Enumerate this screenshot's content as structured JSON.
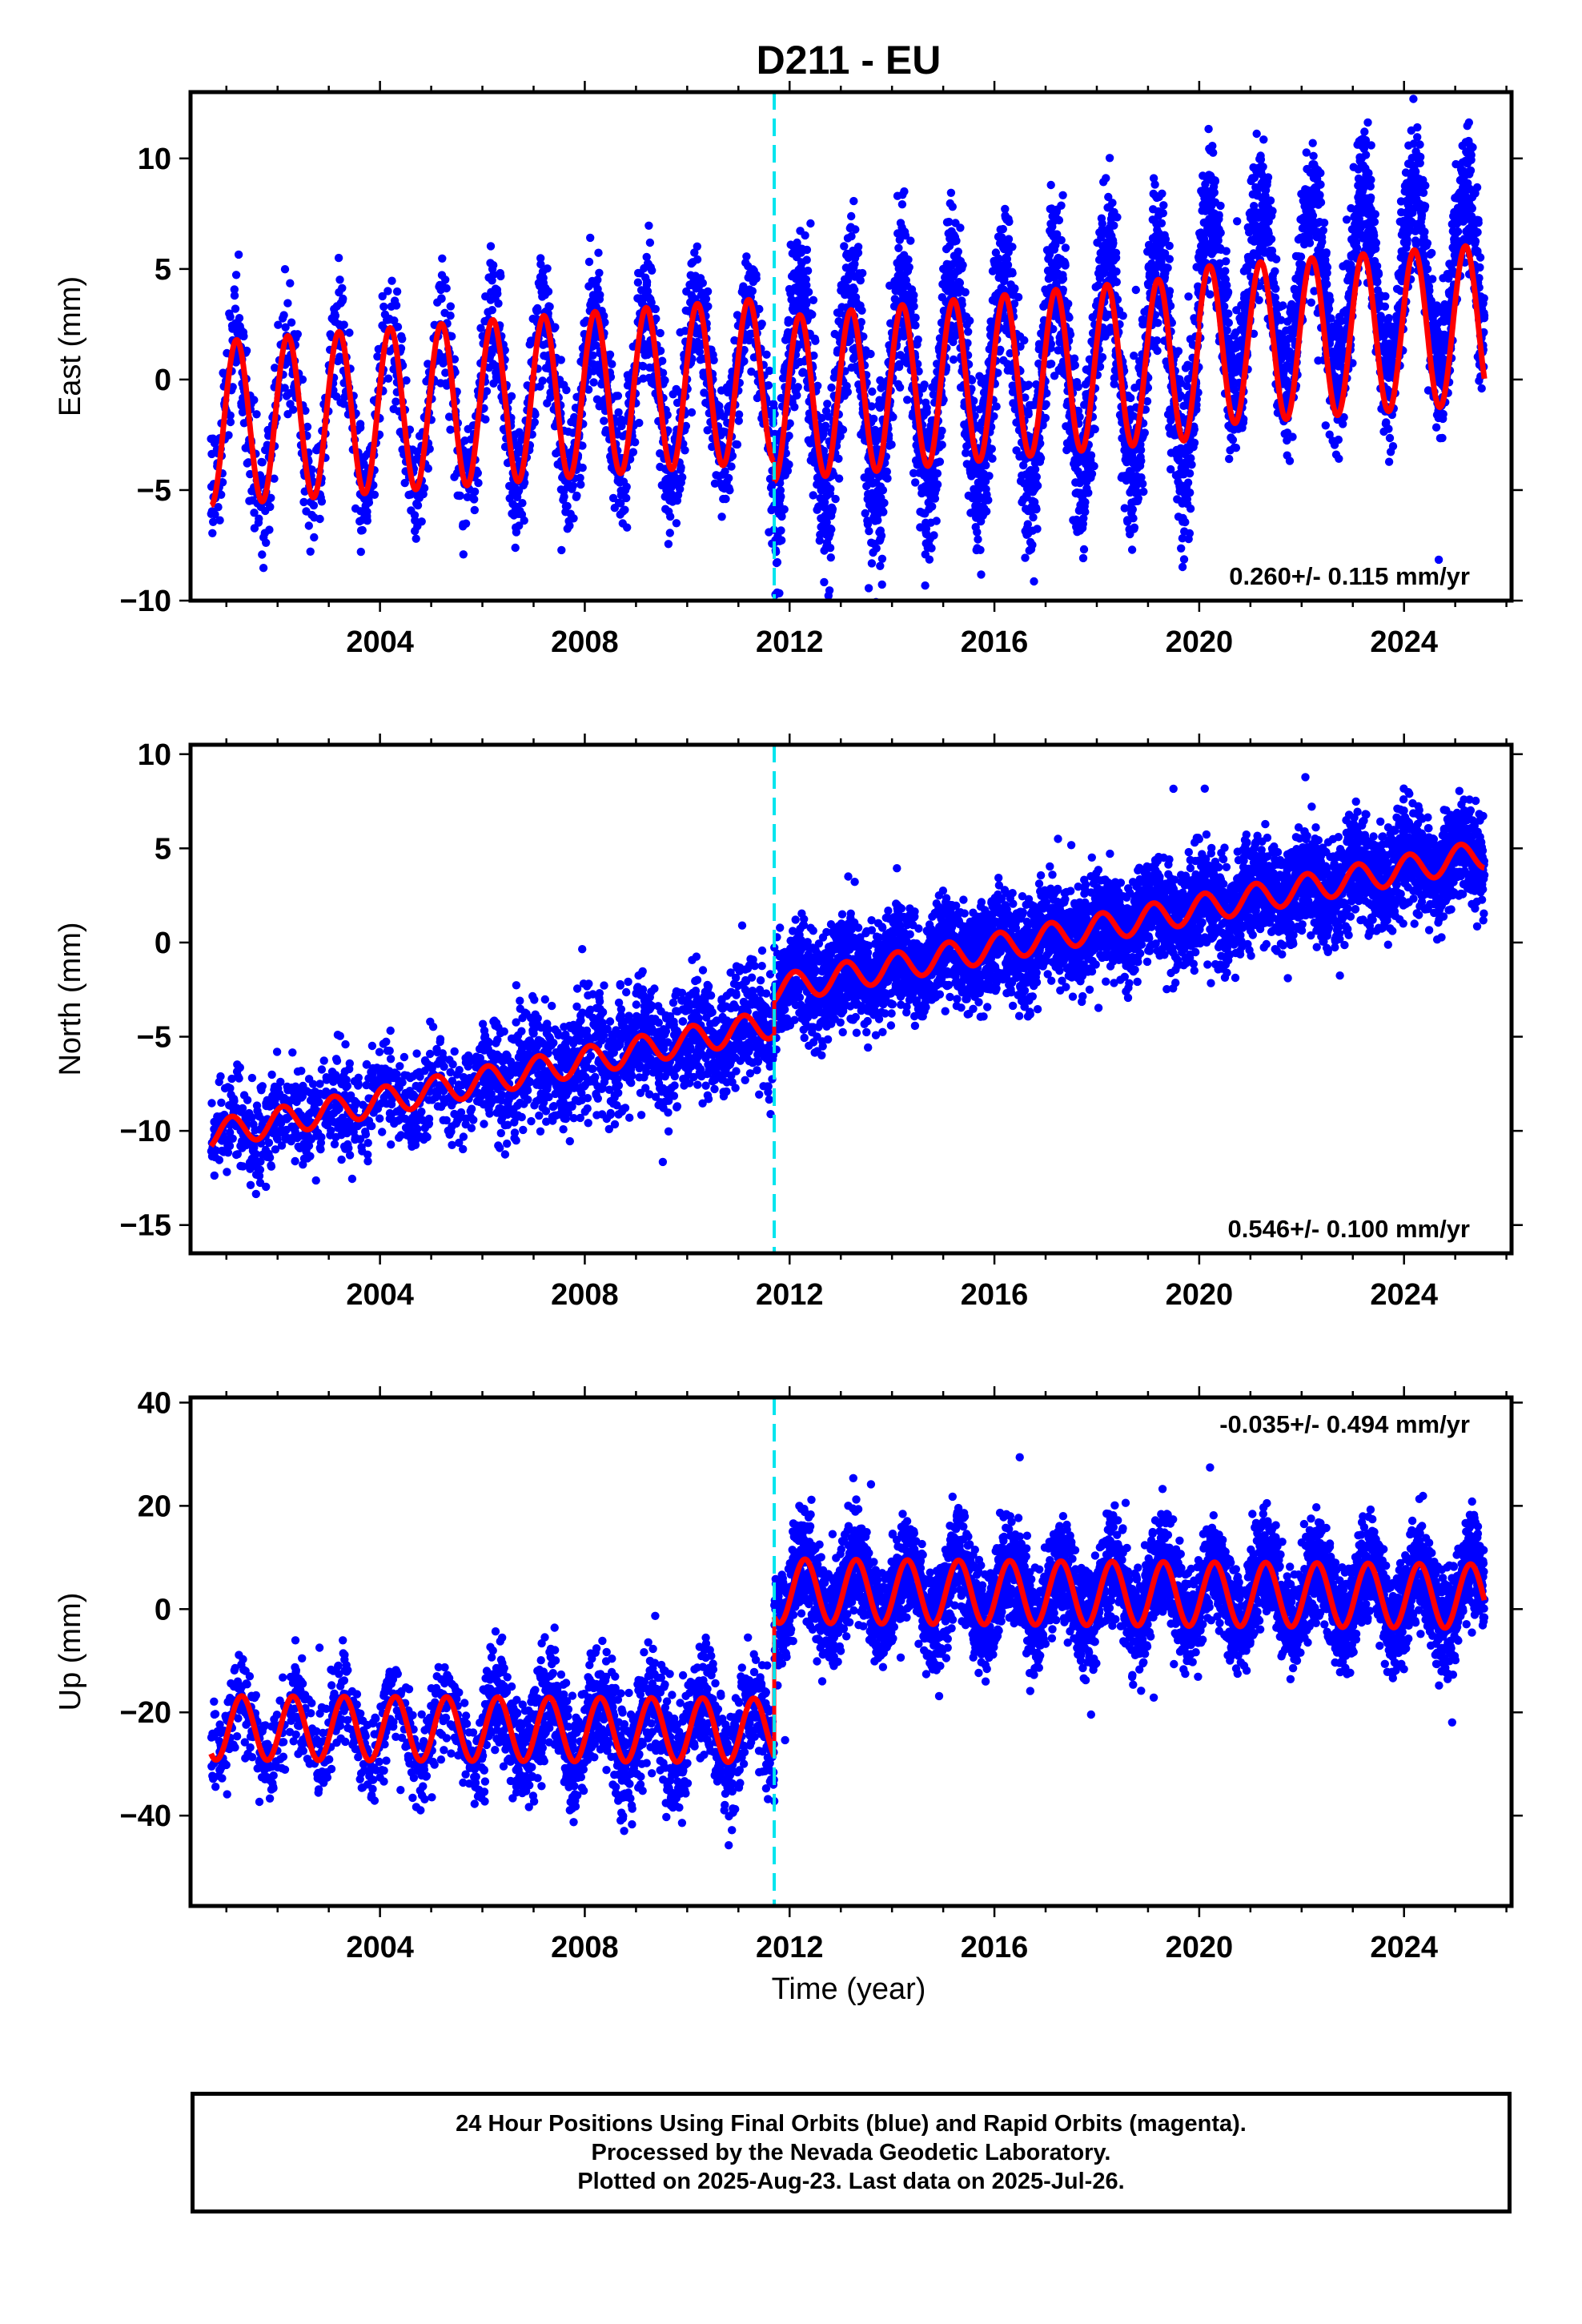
{
  "title": "D211 - EU",
  "xlabel": "Time (year)",
  "colors": {
    "final_orbits": "#0000ff",
    "model": "#ff0000",
    "offset_line": "#00e5ee"
  },
  "chart_data": [
    {
      "type": "scatter",
      "ylabel": "East (mm)",
      "ylim": [
        -10,
        13
      ],
      "yticks": [
        -10,
        -5,
        0,
        5,
        10
      ],
      "xlim": [
        2000.3,
        2026.1
      ],
      "xticks": [
        "2004",
        "2008",
        "2012",
        "2016",
        "2020",
        "2024"
      ],
      "rate_label": "0.260+/- 0.115 mm/yr",
      "rate_position": "bottom-right",
      "offset_epoch": 2011.7,
      "data_span": [
        2000.7,
        2025.57
      ],
      "model_segments": [
        {
          "start": 2000.7,
          "end": 2011.7,
          "mean_start": -2.0,
          "mean_end": 0.0,
          "amplitude": 3.7,
          "phase_year": 2001.2
        },
        {
          "start": 2011.7,
          "end": 2020.0,
          "mean_start": -0.9,
          "mean_end": 1.0,
          "amplitude": 3.7,
          "phase_year": 2001.2
        },
        {
          "start": 2020.0,
          "end": 2025.57,
          "mean_start": 1.5,
          "mean_end": 2.5,
          "amplitude": 3.6,
          "phase_year": 2001.2
        }
      ],
      "scatter_segments": [
        {
          "start": 2000.7,
          "end": 2006.0,
          "density": 0.35,
          "spread": 1.4
        },
        {
          "start": 2006.0,
          "end": 2011.7,
          "density": 0.55,
          "spread": 1.5
        },
        {
          "start": 2011.7,
          "end": 2020.0,
          "density": 0.9,
          "spread": 1.9,
          "amp_scale": 1.25
        },
        {
          "start": 2020.0,
          "end": 2025.57,
          "density": 0.9,
          "spread": 1.6,
          "amp_scale": 1.15,
          "extra_shift": 2.0
        }
      ]
    },
    {
      "type": "scatter",
      "ylabel": "North (mm)",
      "ylim": [
        -16.5,
        10.5
      ],
      "yticks": [
        -15,
        -10,
        -5,
        0,
        5,
        10
      ],
      "xlim": [
        2000.3,
        2026.1
      ],
      "xticks": [
        "2004",
        "2008",
        "2012",
        "2016",
        "2020",
        "2024"
      ],
      "rate_label": "0.546+/- 0.100 mm/yr",
      "rate_position": "bottom-right",
      "offset_epoch": 2011.7,
      "data_span": [
        2000.7,
        2025.57
      ],
      "model_segments": [
        {
          "start": 2000.7,
          "end": 2011.7,
          "mean_start": -10.2,
          "mean_end": -4.3,
          "amplitude": 0.75,
          "phase_year": 2001.1
        },
        {
          "start": 2011.7,
          "end": 2025.57,
          "mean_start": -2.5,
          "mean_end": 4.7,
          "amplitude": 0.75,
          "phase_year": 2001.1
        }
      ],
      "scatter_segments": [
        {
          "start": 2000.7,
          "end": 2006.0,
          "density": 0.35,
          "spread": 1.3
        },
        {
          "start": 2006.0,
          "end": 2011.7,
          "density": 0.6,
          "spread": 1.6
        },
        {
          "start": 2011.7,
          "end": 2025.57,
          "density": 0.9,
          "spread": 1.35
        }
      ]
    },
    {
      "type": "scatter",
      "ylabel": "Up (mm)",
      "ylim": [
        -57.5,
        41
      ],
      "yticks": [
        -40,
        -20,
        0,
        20,
        40
      ],
      "xlim": [
        2000.3,
        2026.1
      ],
      "xticks": [
        "2004",
        "2008",
        "2012",
        "2016",
        "2020",
        "2024"
      ],
      "rate_label": "-0.035+/- 0.494 mm/yr",
      "rate_position": "top-right",
      "offset_epoch": 2011.7,
      "data_span": [
        2000.7,
        2025.57
      ],
      "model_segments": [
        {
          "start": 2000.7,
          "end": 2011.7,
          "mean_start": -23.0,
          "mean_end": -23.5,
          "amplitude": 6.2,
          "phase_year": 2001.3
        },
        {
          "start": 2011.7,
          "end": 2025.57,
          "mean_start": 3.5,
          "mean_end": 2.5,
          "amplitude": 6.2,
          "phase_year": 2001.3
        }
      ],
      "scatter_segments": [
        {
          "start": 2000.7,
          "end": 2006.0,
          "density": 0.35,
          "spread": 4.5
        },
        {
          "start": 2006.0,
          "end": 2011.7,
          "density": 0.6,
          "spread": 5.5
        },
        {
          "start": 2011.7,
          "end": 2025.57,
          "density": 0.9,
          "spread": 5.0
        }
      ]
    }
  ],
  "footer": {
    "line1": "24 Hour Positions Using Final Orbits (blue) and Rapid Orbits (magenta).",
    "line2": "Processed by the Nevada Geodetic Laboratory.",
    "line3": "Plotted on 2025-Aug-23. Last data on 2025-Jul-26."
  }
}
